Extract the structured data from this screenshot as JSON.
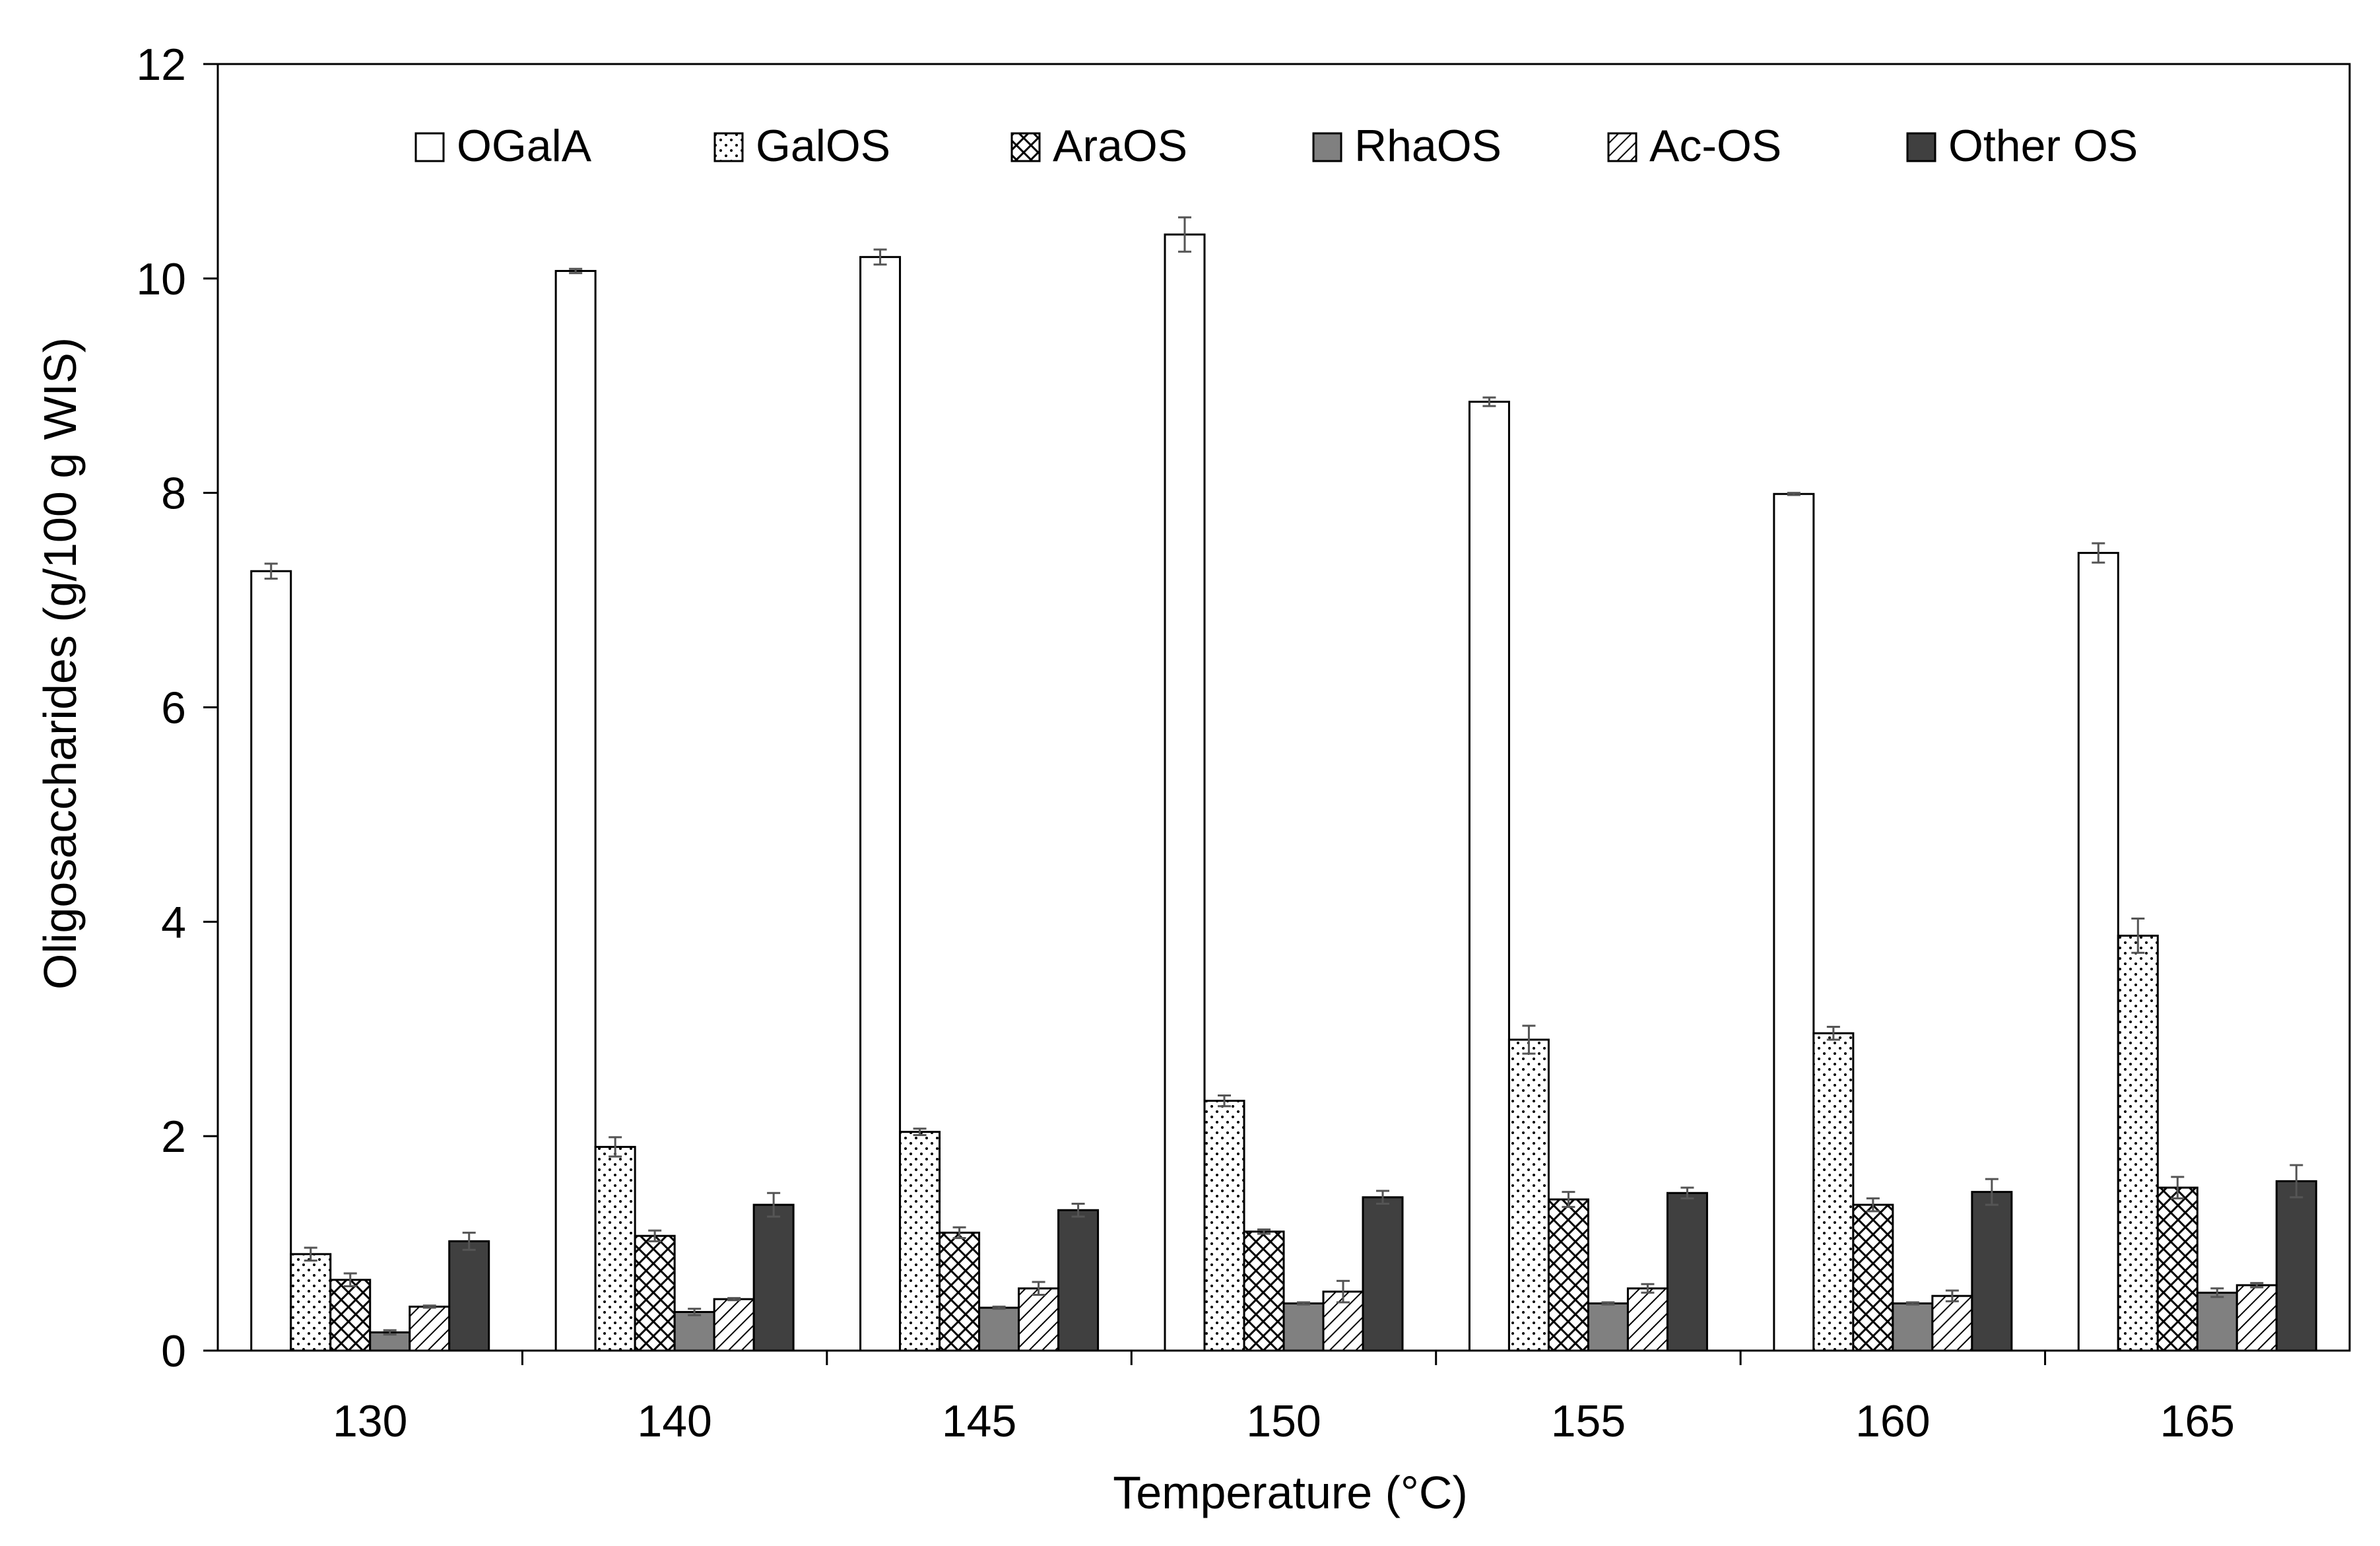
{
  "chart_data": {
    "type": "bar",
    "title": "",
    "xlabel": "Temperature (°C)",
    "ylabel": "Oligosaccharides (g/100 g WIS)",
    "ylim": [
      0,
      12
    ],
    "yticks": [
      "0",
      "2",
      "4",
      "6",
      "8",
      "10",
      "12"
    ],
    "categories": [
      "130",
      "140",
      "145",
      "150",
      "155",
      "160",
      "165"
    ],
    "legend_position": "top",
    "grid": false,
    "series": [
      {
        "name": "OGalA",
        "pattern": "white",
        "values": [
          7.27,
          10.07,
          10.2,
          10.41,
          8.85,
          7.99,
          7.44
        ],
        "errors": [
          0.07,
          0.02,
          0.07,
          0.16,
          0.04,
          0.01,
          0.09
        ]
      },
      {
        "name": "GalOS",
        "pattern": "dots",
        "values": [
          0.9,
          1.9,
          2.04,
          2.33,
          2.9,
          2.96,
          3.87
        ],
        "errors": [
          0.06,
          0.09,
          0.03,
          0.05,
          0.13,
          0.06,
          0.16
        ]
      },
      {
        "name": "AraOS",
        "pattern": "crosshatch",
        "values": [
          0.66,
          1.07,
          1.1,
          1.11,
          1.41,
          1.36,
          1.52
        ],
        "errors": [
          0.06,
          0.05,
          0.05,
          0.02,
          0.07,
          0.06,
          0.1
        ]
      },
      {
        "name": "RhaOS",
        "pattern": "gray",
        "values": [
          0.17,
          0.36,
          0.4,
          0.44,
          0.44,
          0.44,
          0.54
        ],
        "errors": [
          0.02,
          0.03,
          0.01,
          0.01,
          0.01,
          0.01,
          0.04
        ]
      },
      {
        "name": "Ac-OS",
        "pattern": "diagonal",
        "values": [
          0.41,
          0.48,
          0.58,
          0.55,
          0.58,
          0.51,
          0.61
        ],
        "errors": [
          0.01,
          0.01,
          0.06,
          0.1,
          0.04,
          0.05,
          0.02
        ]
      },
      {
        "name": "Other OS",
        "pattern": "dark",
        "values": [
          1.02,
          1.36,
          1.31,
          1.43,
          1.47,
          1.48,
          1.58
        ],
        "errors": [
          0.08,
          0.11,
          0.06,
          0.06,
          0.05,
          0.12,
          0.15
        ]
      }
    ],
    "colors": {
      "outline": "#000000",
      "white_fill": "#ffffff",
      "gray_fill": "#808080",
      "dark_fill": "#404040",
      "errorbar": "#555555"
    }
  }
}
